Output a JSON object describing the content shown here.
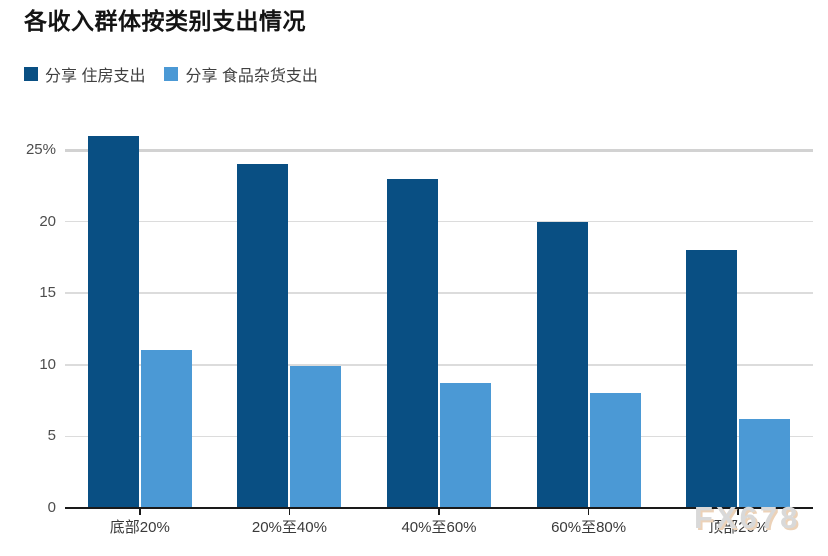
{
  "page": {
    "background": "#ffffff"
  },
  "header": {
    "title": "各收入群体按类别支出情况"
  },
  "legend": {
    "items": [
      {
        "label": "分享 住房支出",
        "color": "#094f83"
      },
      {
        "label": "分享 食品杂货支出",
        "color": "#4b99d5"
      }
    ]
  },
  "watermark": {
    "text": "FX678"
  },
  "chart_data": {
    "type": "bar",
    "title": "各收入群体按类别支出情况",
    "categories": [
      "底部20%",
      "20%至40%",
      "40%至60%",
      "60%至80%",
      "顶部20%"
    ],
    "series": [
      {
        "name": "分享 住房支出",
        "color": "#094f83",
        "values": [
          26,
          24,
          23,
          20,
          18
        ]
      },
      {
        "name": "分享 食品杂货支出",
        "color": "#4b99d5",
        "values": [
          11,
          9.9,
          8.7,
          8,
          6.2
        ]
      }
    ],
    "xlabel": "",
    "ylabel": "",
    "ylim": [
      0,
      26.5
    ],
    "yticks": [
      {
        "value": 0,
        "label": "0"
      },
      {
        "value": 5,
        "label": "5"
      },
      {
        "value": 10,
        "label": "10"
      },
      {
        "value": 15,
        "label": "15"
      },
      {
        "value": 20,
        "label": "20"
      },
      {
        "value": 25,
        "label": "25%"
      }
    ],
    "grid": true,
    "legend_position": "top-left"
  }
}
